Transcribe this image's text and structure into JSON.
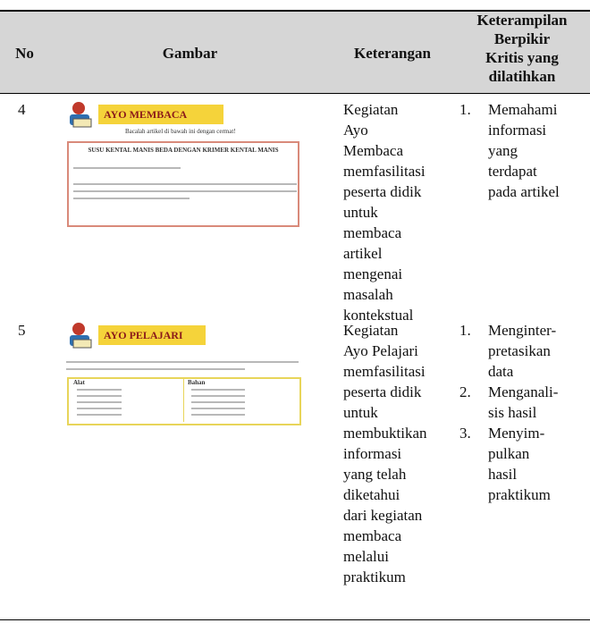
{
  "header": {
    "columns": [
      "No",
      "Gambar",
      "Keterangan"
    ],
    "skills_heading": [
      "Keterampilan",
      "Berpikir",
      "Kritis yang",
      "dilatihkan"
    ]
  },
  "rows": [
    {
      "no": "4",
      "image": {
        "banner": "AYO MEMBACA",
        "instruction": "Bacalah artikel di bawah ini dengan cermat!",
        "headline": "SUSU KENTAL MANIS BEDA DENGAN KRIMER KENTAL MANIS"
      },
      "description": [
        "Kegiatan",
        "Ayo",
        "Membaca",
        "memfasilitasi",
        "peserta didik",
        "untuk",
        "membaca",
        "artikel",
        "mengenai",
        "masalah",
        "kontekstual"
      ],
      "skills": [
        {
          "number": "1.",
          "lines": [
            "Memahami",
            "informasi",
            "yang",
            "terdapat",
            "pada artikel"
          ]
        }
      ]
    },
    {
      "no": "5",
      "image": {
        "banner": "AYO PELAJARI",
        "left_heading": "Alat",
        "right_heading": "Bahan"
      },
      "description": [
        "Kegiatan",
        "Ayo Pelajari",
        "memfasilitasi",
        "peserta didik",
        "untuk",
        "membuktikan",
        "informasi",
        "yang telah",
        "diketahui",
        "dari kegiatan",
        "membaca",
        "melalui",
        "praktikum"
      ],
      "skills": [
        {
          "number": "1.",
          "lines": [
            "Menginter-",
            "pretasikan",
            "data"
          ]
        },
        {
          "number": "2.",
          "lines": [
            "Menganali-",
            "sis hasil"
          ]
        },
        {
          "number": "3.",
          "lines": [
            "Menyim-",
            "pulkan",
            "hasil",
            "praktikum"
          ]
        }
      ]
    }
  ]
}
